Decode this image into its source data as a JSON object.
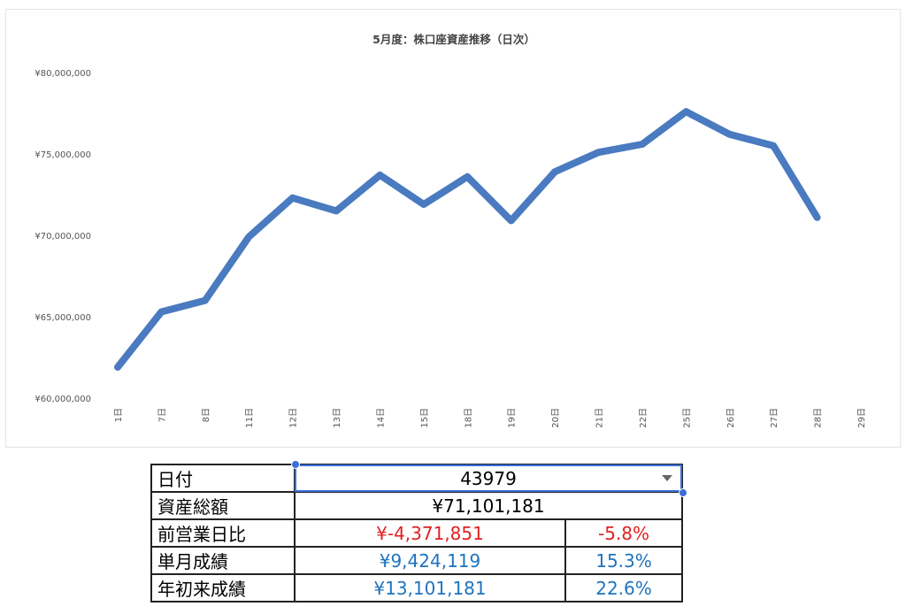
{
  "chart_data": {
    "type": "line",
    "title": "5月度：株口座資産推移（日次）",
    "categories": [
      "1日",
      "7日",
      "8日",
      "11日",
      "12日",
      "13日",
      "14日",
      "15日",
      "18日",
      "19日",
      "20日",
      "21日",
      "22日",
      "25日",
      "26日",
      "27日",
      "28日",
      "29日"
    ],
    "series": [
      {
        "values": [
          61900000,
          65300000,
          66000000,
          69900000,
          72300000,
          71500000,
          73700000,
          71900000,
          73600000,
          70900000,
          73900000,
          75100000,
          75600000,
          77600000,
          76200000,
          75500000,
          71100000,
          null
        ]
      }
    ],
    "ylim": [
      60000000,
      80000000
    ],
    "yticks": [
      60000000,
      65000000,
      70000000,
      75000000,
      80000000
    ],
    "ytick_labels": [
      "¥60,000,000",
      "¥65,000,000",
      "¥70,000,000",
      "¥75,000,000",
      "¥80,000,000"
    ],
    "xlabel": "",
    "ylabel": "",
    "grid": false,
    "color": "#4a7ac0"
  },
  "table": {
    "date_label": "日付",
    "date_value": "43979",
    "total_label": "資産総額",
    "total_value": "¥71,101,181",
    "prev_label": "前営業日比",
    "prev_value": "¥-4,371,851",
    "prev_pct": "-5.8%",
    "month_label": "単月成績",
    "month_value": "¥9,424,119",
    "month_pct": "15.3%",
    "ytd_label": "年初来成績",
    "ytd_value": "¥13,101,181",
    "ytd_pct": "22.6%"
  },
  "colors": {
    "negative": "#e02020",
    "positive": "#1e73be",
    "selection": "#3a6fd8"
  }
}
